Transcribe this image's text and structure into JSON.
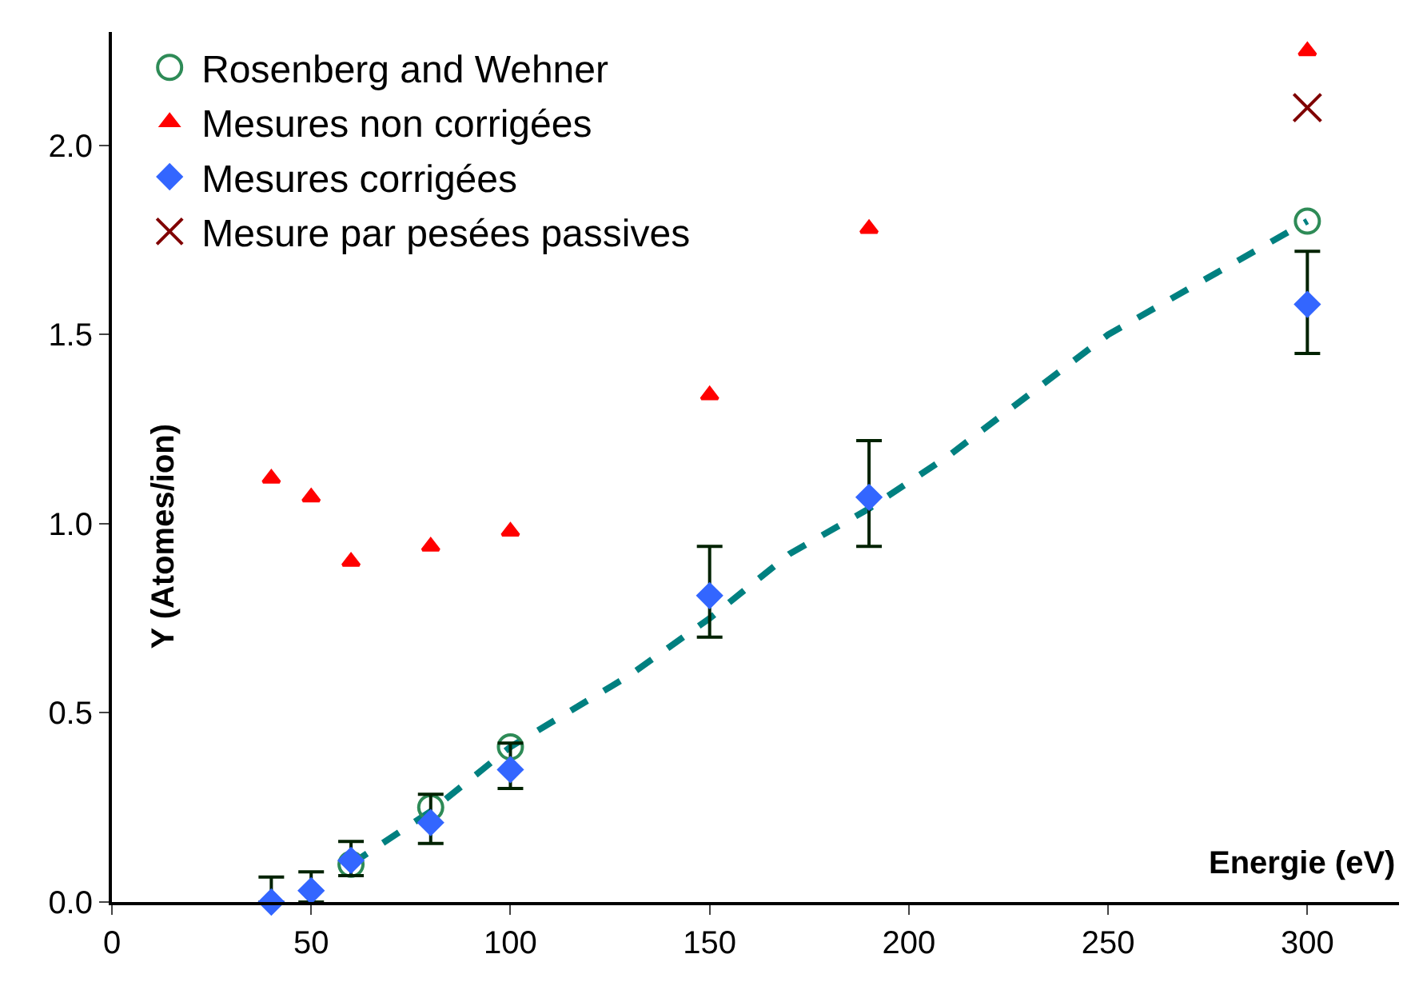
{
  "chart_data": {
    "type": "scatter",
    "xlabel": "Energie (eV)",
    "ylabel": "Y (Atomes/ion)",
    "xlim": [
      0,
      323
    ],
    "ylim": [
      0,
      2.3
    ],
    "xticks": [
      0,
      50,
      100,
      150,
      200,
      250,
      300
    ],
    "yticks": [
      {
        "value": 0,
        "label": "0.0"
      },
      0.5,
      {
        "value": 1,
        "label": "1.0"
      },
      1.5,
      {
        "value": 2,
        "label": "2.0"
      }
    ],
    "legend": "top left",
    "series": [
      {
        "type": "line",
        "color": "#008080",
        "line_style": "dashed",
        "marker": "none",
        "x": [
          60,
          80,
          100,
          130,
          150,
          170,
          190,
          210,
          250,
          270,
          300
        ],
        "values": [
          0.1,
          0.24,
          0.41,
          0.6,
          0.75,
          0.92,
          1.04,
          1.18,
          1.5,
          1.62,
          1.8
        ]
      },
      {
        "name": "Rosenberg and Wehner",
        "color": "#2e8b57",
        "marker": "circle",
        "x": [
          60,
          80,
          100,
          300
        ],
        "values": [
          0.1,
          0.25,
          0.41,
          1.8
        ]
      },
      {
        "name": "Mesures non corrigées",
        "color": "#ff0000",
        "marker": "triangle",
        "x": [
          40,
          50,
          60,
          80,
          100,
          150,
          190,
          300
        ],
        "values": [
          1.12,
          1.07,
          0.9,
          0.94,
          0.98,
          1.34,
          1.78,
          2.25
        ]
      },
      {
        "name": "Mesures corrigées",
        "color": "#3366ff",
        "marker": "diamond",
        "x": [
          40,
          50,
          60,
          80,
          100,
          150,
          190,
          300
        ],
        "values": [
          0.0,
          0.03,
          0.11,
          0.21,
          0.35,
          0.81,
          1.07,
          1.58
        ],
        "errors": [
          [
            0,
            0.066
          ],
          [
            0,
            0.08
          ],
          [
            0.07,
            0.16
          ],
          [
            0.155,
            0.285
          ],
          [
            0.3,
            0.42
          ],
          [
            0.7,
            0.94
          ],
          [
            0.94,
            1.22
          ],
          [
            1.45,
            1.72
          ]
        ]
      },
      {
        "name": "Mesure par pesées passives",
        "color": "#800000",
        "marker": "cross",
        "x": [
          300
        ],
        "values": [
          2.1
        ]
      }
    ]
  }
}
